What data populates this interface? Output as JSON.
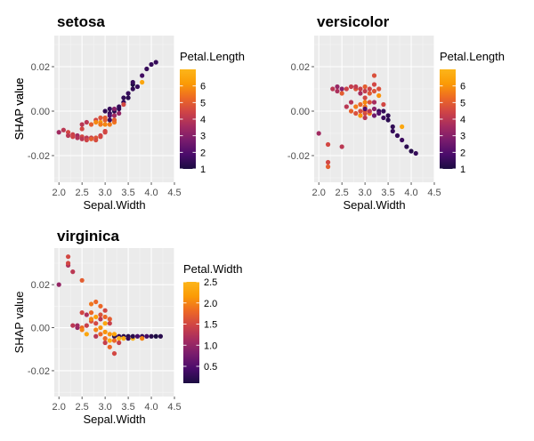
{
  "chart_data": [
    {
      "type": "scatter",
      "title": "setosa",
      "xlabel": "Sepal.Width",
      "ylabel": "SHAP value",
      "xlim": [
        1.9,
        4.5
      ],
      "ylim": [
        -0.032,
        0.034
      ],
      "xticks": [
        2.0,
        2.5,
        3.0,
        3.5,
        4.0,
        4.5
      ],
      "xtick_labels": [
        "2.0",
        "2.5",
        "3.0",
        "3.5",
        "4.0",
        "4.5"
      ],
      "yticks": [
        -0.02,
        0.0,
        0.02
      ],
      "ytick_labels": [
        "-0.02",
        "0.00",
        "0.02"
      ],
      "grid": true,
      "legend": {
        "title": "Petal.Length",
        "placement": "right",
        "range": [
          1,
          7
        ],
        "ticks": [
          1,
          2,
          3,
          4,
          5,
          6
        ],
        "tick_labels": [
          "1",
          "2",
          "3",
          "4",
          "5",
          "6"
        ]
      },
      "color_var": "Petal.Length",
      "points": [
        {
          "x": 2.0,
          "y": -0.0095,
          "c": 3.5
        },
        {
          "x": 2.1,
          "y": -0.0085,
          "c": 4.0
        },
        {
          "x": 2.2,
          "y": -0.0095,
          "c": 4.5
        },
        {
          "x": 2.2,
          "y": -0.011,
          "c": 4.0
        },
        {
          "x": 2.3,
          "y": -0.0105,
          "c": 4.3
        },
        {
          "x": 2.3,
          "y": -0.0115,
          "c": 4.4
        },
        {
          "x": 2.4,
          "y": -0.011,
          "c": 3.5
        },
        {
          "x": 2.4,
          "y": -0.012,
          "c": 3.8
        },
        {
          "x": 2.5,
          "y": -0.0115,
          "c": 4.5
        },
        {
          "x": 2.5,
          "y": -0.0125,
          "c": 4.0
        },
        {
          "x": 2.6,
          "y": -0.012,
          "c": 4.0
        },
        {
          "x": 2.6,
          "y": -0.013,
          "c": 4.4
        },
        {
          "x": 2.7,
          "y": -0.012,
          "c": 4.2
        },
        {
          "x": 2.7,
          "y": -0.0125,
          "c": 5.0
        },
        {
          "x": 2.8,
          "y": -0.012,
          "c": 4.8
        },
        {
          "x": 2.8,
          "y": -0.013,
          "c": 4.6
        },
        {
          "x": 2.9,
          "y": -0.011,
          "c": 4.3
        },
        {
          "x": 2.9,
          "y": -0.0115,
          "c": 4.5
        },
        {
          "x": 3.0,
          "y": -0.009,
          "c": 4.5
        },
        {
          "x": 3.0,
          "y": -0.0095,
          "c": 4.5
        },
        {
          "x": 2.5,
          "y": -0.008,
          "c": 4.5
        },
        {
          "x": 2.5,
          "y": -0.006,
          "c": 4.0
        },
        {
          "x": 2.6,
          "y": -0.005,
          "c": 4.0
        },
        {
          "x": 2.7,
          "y": -0.006,
          "c": 5.0
        },
        {
          "x": 2.8,
          "y": -0.004,
          "c": 4.5
        },
        {
          "x": 2.8,
          "y": -0.005,
          "c": 5.8
        },
        {
          "x": 2.9,
          "y": -0.005,
          "c": 6.0
        },
        {
          "x": 2.9,
          "y": -0.006,
          "c": 5.5
        },
        {
          "x": 3.0,
          "y": -0.004,
          "c": 5.0
        },
        {
          "x": 3.0,
          "y": -0.006,
          "c": 5.8
        },
        {
          "x": 3.0,
          "y": 0.0,
          "c": 1.4
        },
        {
          "x": 3.1,
          "y": -0.001,
          "c": 1.5
        },
        {
          "x": 3.1,
          "y": 0.001,
          "c": 1.5
        },
        {
          "x": 3.1,
          "y": -0.002,
          "c": 2.0
        },
        {
          "x": 3.1,
          "y": -0.006,
          "c": 5.6
        },
        {
          "x": 3.2,
          "y": -0.005,
          "c": 5.5
        },
        {
          "x": 3.2,
          "y": 0.0,
          "c": 1.3
        },
        {
          "x": 3.2,
          "y": 0.001,
          "c": 3.0
        },
        {
          "x": 3.2,
          "y": -0.002,
          "c": 3.5
        },
        {
          "x": 3.3,
          "y": 0.002,
          "c": 1.5
        },
        {
          "x": 3.3,
          "y": 0.001,
          "c": 1.4
        },
        {
          "x": 3.3,
          "y": -0.001,
          "c": 3.2
        },
        {
          "x": 3.4,
          "y": 0.004,
          "c": 1.5
        },
        {
          "x": 3.4,
          "y": 0.006,
          "c": 1.4
        },
        {
          "x": 3.4,
          "y": 0.003,
          "c": 4.5
        },
        {
          "x": 3.5,
          "y": 0.006,
          "c": 1.3
        },
        {
          "x": 3.5,
          "y": 0.008,
          "c": 1.5
        },
        {
          "x": 3.6,
          "y": 0.01,
          "c": 1.4
        },
        {
          "x": 3.6,
          "y": 0.012,
          "c": 1.0
        },
        {
          "x": 3.6,
          "y": 0.013,
          "c": 1.5
        },
        {
          "x": 3.7,
          "y": 0.011,
          "c": 1.5
        },
        {
          "x": 3.8,
          "y": 0.013,
          "c": 6.5
        },
        {
          "x": 3.8,
          "y": 0.016,
          "c": 1.7
        },
        {
          "x": 3.9,
          "y": 0.019,
          "c": 1.5
        },
        {
          "x": 4.0,
          "y": 0.021,
          "c": 1.5
        },
        {
          "x": 4.1,
          "y": 0.022,
          "c": 1.5
        },
        {
          "x": 3.0,
          "y": -0.003,
          "c": 5.0
        },
        {
          "x": 2.9,
          "y": -0.003,
          "c": 4.8
        },
        {
          "x": 3.2,
          "y": -0.004,
          "c": 5.1
        },
        {
          "x": 3.1,
          "y": -0.004,
          "c": 1.6
        }
      ]
    },
    {
      "type": "scatter",
      "title": "versicolor",
      "xlabel": "Sepal.Width",
      "ylabel": "SHAP value",
      "xlim": [
        1.9,
        4.5
      ],
      "ylim": [
        -0.032,
        0.034
      ],
      "xticks": [
        2.0,
        2.5,
        3.0,
        3.5,
        4.0,
        4.5
      ],
      "xtick_labels": [
        "2.0",
        "2.5",
        "3.0",
        "3.5",
        "4.0",
        "4.5"
      ],
      "yticks": [
        -0.02,
        0.0,
        0.02
      ],
      "ytick_labels": [
        "-0.02",
        "0.00",
        "0.02"
      ],
      "grid": true,
      "legend": {
        "title": "Petal.Length",
        "placement": "right",
        "range": [
          1,
          7
        ],
        "ticks": [
          1,
          2,
          3,
          4,
          5,
          6
        ],
        "tick_labels": [
          "1",
          "2",
          "3",
          "4",
          "5",
          "6"
        ]
      },
      "color_var": "Petal.Length",
      "points": [
        {
          "x": 2.0,
          "y": -0.01,
          "c": 3.5
        },
        {
          "x": 2.2,
          "y": -0.015,
          "c": 4.5
        },
        {
          "x": 2.2,
          "y": -0.023,
          "c": 4.5
        },
        {
          "x": 2.2,
          "y": -0.025,
          "c": 5.0
        },
        {
          "x": 2.3,
          "y": 0.01,
          "c": 4.0
        },
        {
          "x": 2.4,
          "y": 0.009,
          "c": 3.7
        },
        {
          "x": 2.4,
          "y": 0.011,
          "c": 3.3
        },
        {
          "x": 2.5,
          "y": 0.01,
          "c": 3.0
        },
        {
          "x": 2.5,
          "y": 0.008,
          "c": 5.0
        },
        {
          "x": 2.5,
          "y": -0.016,
          "c": 4.0
        },
        {
          "x": 2.6,
          "y": 0.01,
          "c": 4.4
        },
        {
          "x": 2.6,
          "y": 0.002,
          "c": 4.0
        },
        {
          "x": 2.7,
          "y": 0.004,
          "c": 3.9
        },
        {
          "x": 2.7,
          "y": 0.0,
          "c": 5.1
        },
        {
          "x": 2.7,
          "y": 0.011,
          "c": 4.2
        },
        {
          "x": 2.8,
          "y": 0.002,
          "c": 5.6
        },
        {
          "x": 2.8,
          "y": 0.01,
          "c": 4.8
        },
        {
          "x": 2.8,
          "y": -0.001,
          "c": 4.7
        },
        {
          "x": 2.8,
          "y": 0.011,
          "c": 4.1
        },
        {
          "x": 2.9,
          "y": 0.0,
          "c": 4.6
        },
        {
          "x": 2.9,
          "y": 0.008,
          "c": 3.6
        },
        {
          "x": 2.9,
          "y": 0.01,
          "c": 4.3
        },
        {
          "x": 2.9,
          "y": -0.002,
          "c": 6.0
        },
        {
          "x": 2.9,
          "y": 0.003,
          "c": 5.2
        },
        {
          "x": 3.0,
          "y": 0.011,
          "c": 5.0
        },
        {
          "x": 3.0,
          "y": 0.009,
          "c": 4.2
        },
        {
          "x": 3.0,
          "y": -0.001,
          "c": 4.5
        },
        {
          "x": 3.0,
          "y": 0.0,
          "c": 4.8
        },
        {
          "x": 3.0,
          "y": 0.002,
          "c": 5.5
        },
        {
          "x": 3.0,
          "y": 0.004,
          "c": 5.8
        },
        {
          "x": 3.0,
          "y": 0.006,
          "c": 4.5
        },
        {
          "x": 3.0,
          "y": -0.003,
          "c": 4.0
        },
        {
          "x": 3.0,
          "y": 0.001,
          "c": 2.0
        },
        {
          "x": 3.1,
          "y": 0.01,
          "c": 4.4
        },
        {
          "x": 3.1,
          "y": 0.008,
          "c": 4.9
        },
        {
          "x": 3.1,
          "y": 0.004,
          "c": 4.7
        },
        {
          "x": 3.1,
          "y": -0.001,
          "c": 5.6
        },
        {
          "x": 3.1,
          "y": 0.0,
          "c": 4.0
        },
        {
          "x": 3.2,
          "y": 0.016,
          "c": 4.7
        },
        {
          "x": 3.2,
          "y": 0.012,
          "c": 4.5
        },
        {
          "x": 3.2,
          "y": 0.009,
          "c": 4.8
        },
        {
          "x": 3.2,
          "y": 0.004,
          "c": 3.6
        },
        {
          "x": 3.2,
          "y": 0.001,
          "c": 3.0
        },
        {
          "x": 3.2,
          "y": -0.002,
          "c": 2.5
        },
        {
          "x": 3.3,
          "y": 0.01,
          "c": 4.7
        },
        {
          "x": 3.3,
          "y": 0.007,
          "c": 6.0
        },
        {
          "x": 3.3,
          "y": 0.0,
          "c": 1.5
        },
        {
          "x": 3.3,
          "y": -0.001,
          "c": 2.0
        },
        {
          "x": 3.4,
          "y": 0.003,
          "c": 4.5
        },
        {
          "x": 3.4,
          "y": 0.0,
          "c": 1.5
        },
        {
          "x": 3.4,
          "y": -0.003,
          "c": 1.6
        },
        {
          "x": 3.5,
          "y": -0.002,
          "c": 1.4
        },
        {
          "x": 3.5,
          "y": -0.004,
          "c": 1.3
        },
        {
          "x": 3.6,
          "y": -0.007,
          "c": 1.4
        },
        {
          "x": 3.6,
          "y": -0.009,
          "c": 1.5
        },
        {
          "x": 3.7,
          "y": -0.011,
          "c": 1.5
        },
        {
          "x": 3.8,
          "y": -0.007,
          "c": 6.5
        },
        {
          "x": 3.8,
          "y": -0.013,
          "c": 1.6
        },
        {
          "x": 3.9,
          "y": -0.016,
          "c": 1.3
        },
        {
          "x": 4.0,
          "y": -0.018,
          "c": 1.2
        },
        {
          "x": 4.1,
          "y": -0.019,
          "c": 1.5
        }
      ]
    },
    {
      "type": "scatter",
      "title": "virginica",
      "xlabel": "Sepal.Width",
      "ylabel": "SHAP value",
      "xlim": [
        1.9,
        4.5
      ],
      "ylim": [
        -0.032,
        0.037
      ],
      "xticks": [
        2.0,
        2.5,
        3.0,
        3.5,
        4.0,
        4.5
      ],
      "xtick_labels": [
        "2.0",
        "2.5",
        "3.0",
        "3.5",
        "4.0",
        "4.5"
      ],
      "yticks": [
        -0.02,
        0.0,
        0.02
      ],
      "ytick_labels": [
        "-0.02",
        "0.00",
        "0.02"
      ],
      "grid": true,
      "legend": {
        "title": "Petal.Width",
        "placement": "right",
        "range": [
          0.1,
          2.5
        ],
        "ticks": [
          0.5,
          1.0,
          1.5,
          2.0,
          2.5
        ],
        "tick_labels": [
          "0.5",
          "1.0",
          "1.5",
          "2.0",
          "2.5"
        ]
      },
      "color_var": "Petal.Width",
      "points": [
        {
          "x": 2.0,
          "y": 0.02,
          "c": 1.0
        },
        {
          "x": 2.2,
          "y": 0.033,
          "c": 1.5
        },
        {
          "x": 2.2,
          "y": 0.029,
          "c": 1.2
        },
        {
          "x": 2.3,
          "y": 0.026,
          "c": 1.3
        },
        {
          "x": 2.2,
          "y": 0.03,
          "c": 1.5
        },
        {
          "x": 2.3,
          "y": 0.001,
          "c": 1.3
        },
        {
          "x": 2.4,
          "y": 0.0,
          "c": 1.0
        },
        {
          "x": 2.4,
          "y": 0.001,
          "c": 1.1
        },
        {
          "x": 2.5,
          "y": 0.022,
          "c": 1.7
        },
        {
          "x": 2.5,
          "y": 0.0,
          "c": 1.8
        },
        {
          "x": 2.5,
          "y": -0.001,
          "c": 2.0
        },
        {
          "x": 2.5,
          "y": 0.007,
          "c": 1.5
        },
        {
          "x": 2.6,
          "y": 0.006,
          "c": 1.2
        },
        {
          "x": 2.6,
          "y": 0.001,
          "c": 1.4
        },
        {
          "x": 2.6,
          "y": -0.003,
          "c": 2.3
        },
        {
          "x": 2.7,
          "y": 0.011,
          "c": 1.9
        },
        {
          "x": 2.7,
          "y": 0.007,
          "c": 1.8
        },
        {
          "x": 2.7,
          "y": 0.003,
          "c": 1.6
        },
        {
          "x": 2.7,
          "y": 0.004,
          "c": 2.0
        },
        {
          "x": 2.8,
          "y": 0.012,
          "c": 1.8
        },
        {
          "x": 2.8,
          "y": 0.005,
          "c": 2.2
        },
        {
          "x": 2.8,
          "y": 0.002,
          "c": 1.5
        },
        {
          "x": 2.8,
          "y": -0.001,
          "c": 2.0
        },
        {
          "x": 2.8,
          "y": -0.004,
          "c": 1.3
        },
        {
          "x": 2.9,
          "y": 0.01,
          "c": 1.8
        },
        {
          "x": 2.9,
          "y": 0.006,
          "c": 1.6
        },
        {
          "x": 2.9,
          "y": 0.004,
          "c": 1.3
        },
        {
          "x": 2.9,
          "y": 0.0,
          "c": 2.1
        },
        {
          "x": 2.9,
          "y": -0.003,
          "c": 1.8
        },
        {
          "x": 3.0,
          "y": 0.008,
          "c": 1.5
        },
        {
          "x": 3.0,
          "y": 0.005,
          "c": 1.8
        },
        {
          "x": 3.0,
          "y": 0.002,
          "c": 2.3
        },
        {
          "x": 3.0,
          "y": -0.002,
          "c": 2.1
        },
        {
          "x": 3.0,
          "y": -0.005,
          "c": 1.8
        },
        {
          "x": 3.0,
          "y": -0.007,
          "c": 1.4
        },
        {
          "x": 3.1,
          "y": 0.004,
          "c": 1.7
        },
        {
          "x": 3.1,
          "y": 0.002,
          "c": 1.4
        },
        {
          "x": 3.1,
          "y": -0.003,
          "c": 2.1
        },
        {
          "x": 3.1,
          "y": -0.006,
          "c": 2.4
        },
        {
          "x": 3.1,
          "y": -0.009,
          "c": 1.8
        },
        {
          "x": 3.2,
          "y": -0.004,
          "c": 0.2
        },
        {
          "x": 3.2,
          "y": -0.012,
          "c": 1.5
        },
        {
          "x": 3.2,
          "y": -0.006,
          "c": 1.8
        },
        {
          "x": 3.2,
          "y": -0.003,
          "c": 2.3
        },
        {
          "x": 3.3,
          "y": -0.004,
          "c": 0.3
        },
        {
          "x": 3.3,
          "y": -0.005,
          "c": 2.5
        },
        {
          "x": 3.3,
          "y": -0.007,
          "c": 1.4
        },
        {
          "x": 3.4,
          "y": -0.004,
          "c": 0.2
        },
        {
          "x": 3.4,
          "y": -0.005,
          "c": 2.4
        },
        {
          "x": 3.5,
          "y": -0.004,
          "c": 0.2
        },
        {
          "x": 3.5,
          "y": -0.005,
          "c": 0.3
        },
        {
          "x": 3.6,
          "y": -0.005,
          "c": 2.5
        },
        {
          "x": 3.6,
          "y": -0.004,
          "c": 0.2
        },
        {
          "x": 3.7,
          "y": -0.004,
          "c": 0.4
        },
        {
          "x": 3.8,
          "y": -0.004,
          "c": 0.3
        },
        {
          "x": 3.8,
          "y": -0.005,
          "c": 2.0
        },
        {
          "x": 3.9,
          "y": -0.004,
          "c": 0.4
        },
        {
          "x": 4.0,
          "y": -0.004,
          "c": 0.2
        },
        {
          "x": 4.1,
          "y": -0.004,
          "c": 0.1
        },
        {
          "x": 4.2,
          "y": -0.004,
          "c": 0.2
        }
      ]
    }
  ],
  "colors": {
    "panel_bg": "#ebebeb",
    "grid_major": "#ffffff",
    "colormap": [
      "#1b0c41",
      "#4a0c6b",
      "#781c6d",
      "#a52c60",
      "#cf4446",
      "#ed6925",
      "#fb9b06",
      "#fcb519"
    ]
  }
}
